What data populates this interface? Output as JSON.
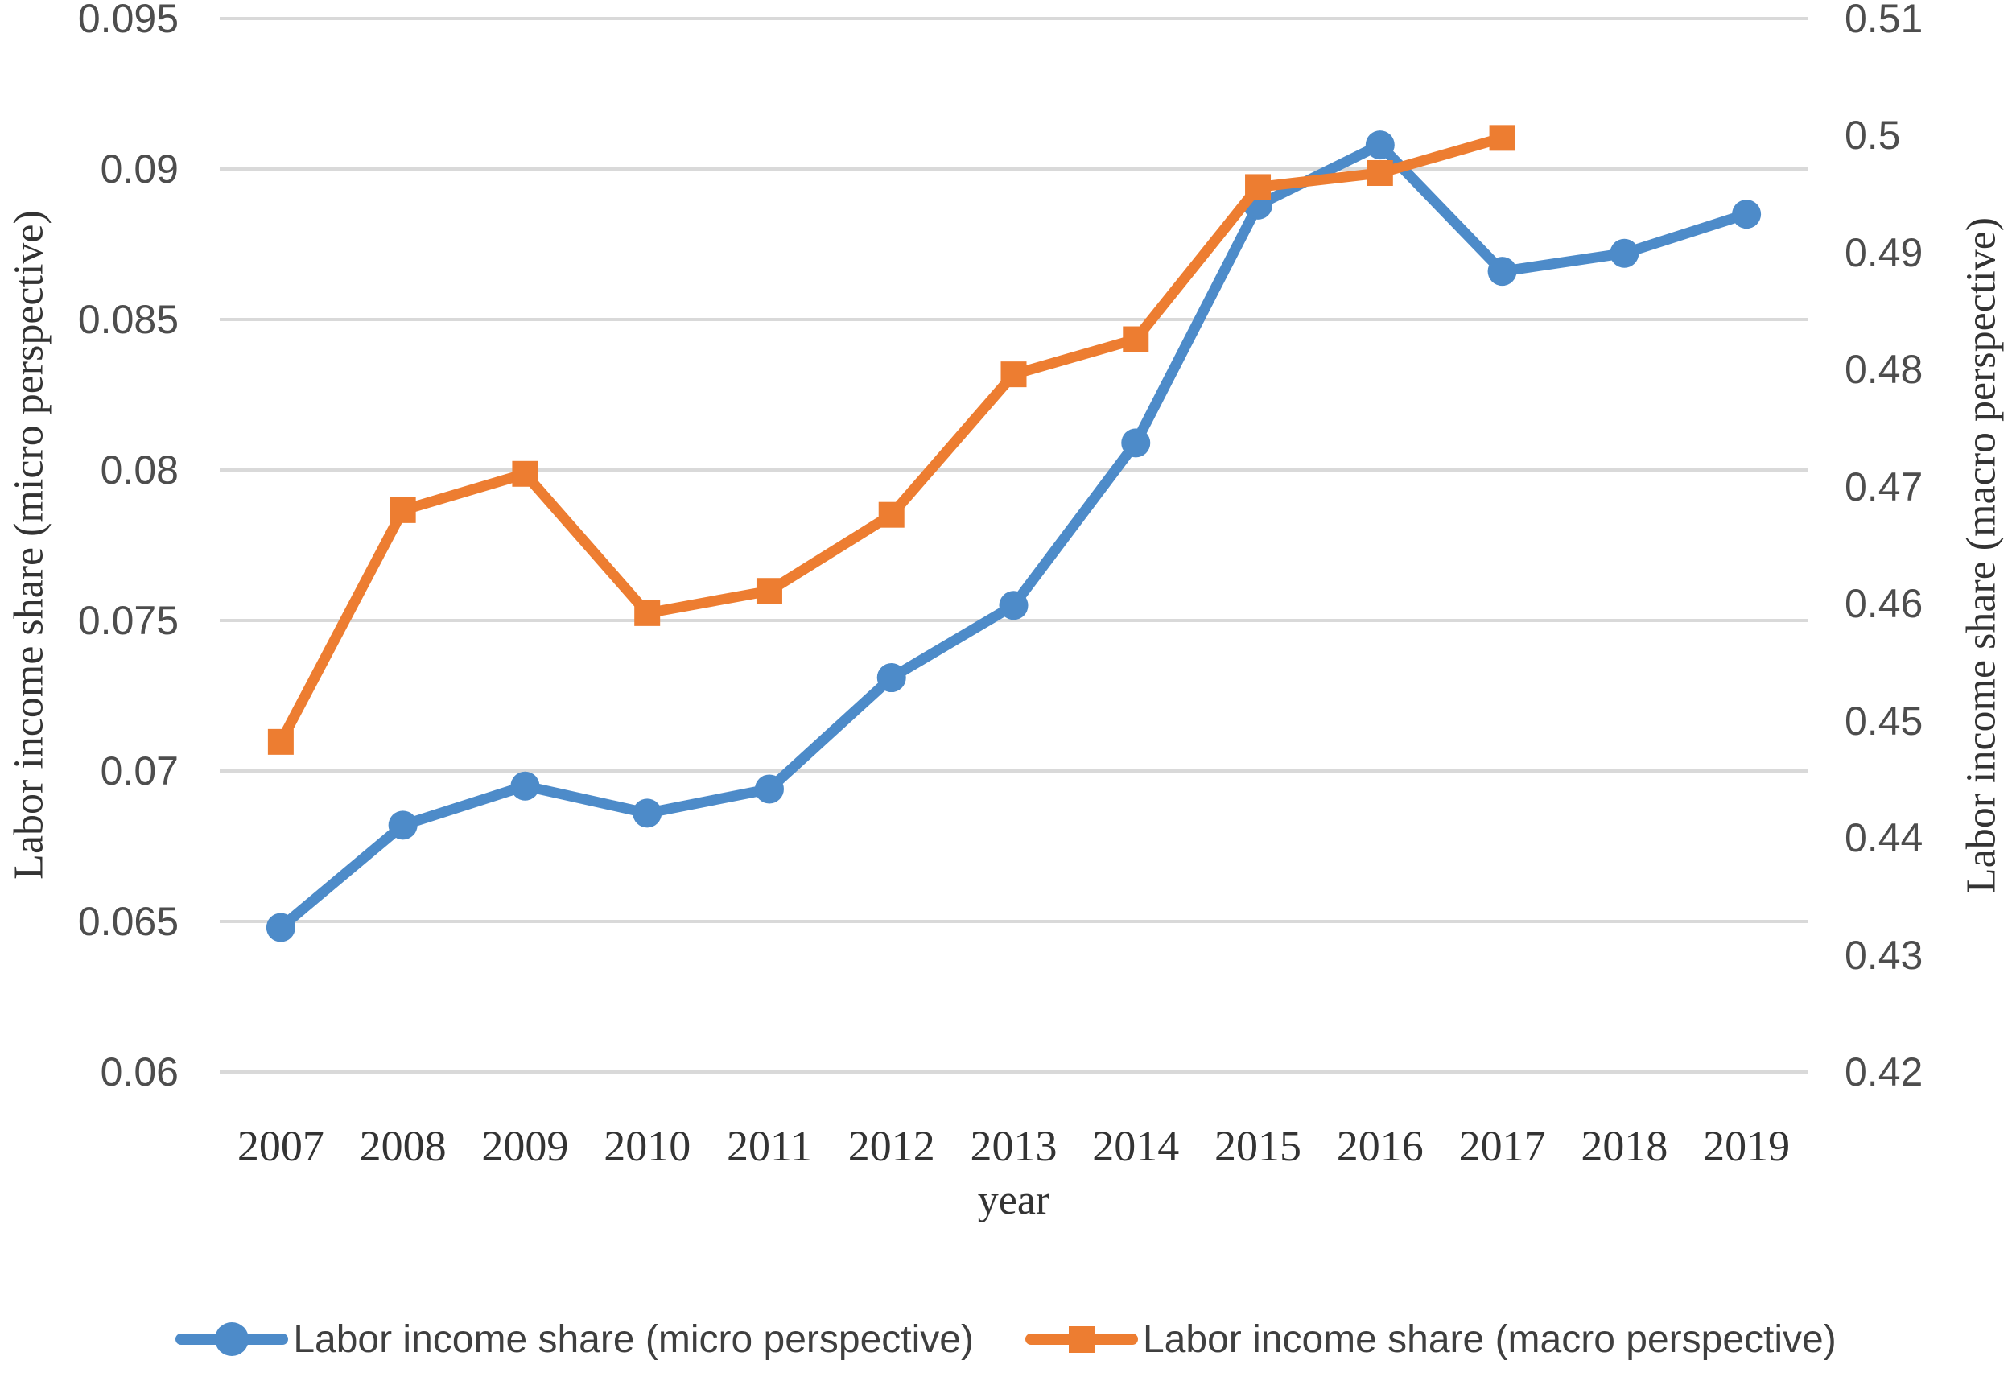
{
  "chart_data": {
    "type": "line",
    "title": "",
    "x": {
      "title": "year",
      "categories": [
        "2007",
        "2008",
        "2009",
        "2010",
        "2011",
        "2012",
        "2013",
        "2014",
        "2015",
        "2016",
        "2017",
        "2018",
        "2019"
      ]
    },
    "left_axis": {
      "title": "Labor income share (micro perspective)",
      "min": 0.06,
      "max": 0.095,
      "tick_step": 0.005,
      "ticks": [
        "0.095",
        "0.09",
        "0.085",
        "0.08",
        "0.075",
        "0.07",
        "0.065",
        "0.06"
      ]
    },
    "right_axis": {
      "title": "Labor income share (macro perspective)",
      "min": 0.42,
      "max": 0.51,
      "tick_step": 0.01,
      "ticks": [
        "0.51",
        "0.5",
        "0.49",
        "0.48",
        "0.47",
        "0.46",
        "0.45",
        "0.44",
        "0.43",
        "0.42"
      ]
    },
    "grid": true,
    "legend_position": "bottom",
    "series": [
      {
        "name": "Labor income share (micro perspective)",
        "axis": "left",
        "marker": "circle",
        "color": "#4D8BC9",
        "values": [
          0.0648,
          0.0682,
          0.0695,
          0.0686,
          0.0694,
          0.0731,
          0.0755,
          0.0809,
          0.0888,
          0.0908,
          0.0866,
          0.0872,
          0.0885
        ]
      },
      {
        "name": "Labor income share (macro perspective)",
        "axis": "right",
        "marker": "square",
        "color": "#ED7D31",
        "values": [
          0.4482,
          0.468,
          0.4711,
          0.4592,
          0.4611,
          0.4676,
          0.4796,
          0.4826,
          0.4956,
          0.4968,
          0.4998
        ]
      }
    ]
  },
  "colors": {
    "gridline": "#D9D9D9",
    "axis_line": "#D9D9D9",
    "tick_text": "#4D4D4D",
    "serif_text": "#333333",
    "legend_text": "#3F3F3F",
    "background": "#FFFFFF"
  }
}
